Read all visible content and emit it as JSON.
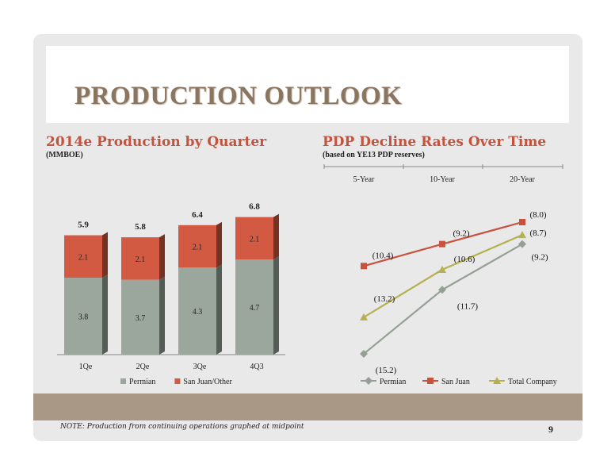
{
  "slide": {
    "title": "PRODUCTION OUTLOOK",
    "note": "NOTE: Production from continuing operations graphed at midpoint",
    "page_number": "9"
  },
  "colors": {
    "permian": "#9ba79c",
    "san_juan": "#d35a42",
    "total": "#b5b151",
    "permian_line": "#95a095",
    "san_juan_line": "#c9523e",
    "band": "#a99886",
    "heading": "#c4533d"
  },
  "chart_data": [
    {
      "type": "bar",
      "stacked": true,
      "title": "2014e Production by Quarter",
      "subtitle": "(MMBOE)",
      "categories": [
        "1Qe",
        "2Qe",
        "3Qe",
        "4Q3"
      ],
      "series": [
        {
          "name": "Permian",
          "values": [
            3.8,
            3.7,
            4.3,
            4.7
          ]
        },
        {
          "name": "San Juan/Other",
          "values": [
            2.1,
            2.1,
            2.1,
            2.1
          ]
        }
      ],
      "totals": [
        "5.9",
        "5.8",
        "6.4",
        "6.8"
      ],
      "segment_labels": {
        "Permian": [
          "3.8",
          "3.7",
          "4.3",
          "4.7"
        ],
        "San Juan/Other": [
          "2.1",
          "2.1",
          "2.1",
          "2.1"
        ]
      },
      "ylim": [
        0,
        7
      ],
      "legend": "bottom"
    },
    {
      "type": "line",
      "title": "PDP Decline Rates Over Time",
      "subtitle": "(based on YE13 PDP reserves)",
      "categories": [
        "5-Year",
        "10-Year",
        "20-Year"
      ],
      "x_axis_position": "top",
      "series": [
        {
          "name": "Permian",
          "values": [
            -15.2,
            -11.7,
            -9.2
          ],
          "labels": [
            "(15.2)",
            "(11.7)",
            "(9.2)"
          ],
          "marker": "diamond"
        },
        {
          "name": "San Juan",
          "values": [
            -10.4,
            -9.2,
            -8.0
          ],
          "labels": [
            "(10.4)",
            "(9.2)",
            "(8.0)"
          ],
          "marker": "square"
        },
        {
          "name": "Total Company",
          "values": [
            -13.2,
            -10.6,
            -8.7
          ],
          "labels": [
            "(13.2)",
            "(10.6)",
            "(8.7)"
          ],
          "marker": "triangle"
        }
      ],
      "ylim": [
        -15.5,
        -7.5
      ],
      "legend": "bottom"
    }
  ]
}
